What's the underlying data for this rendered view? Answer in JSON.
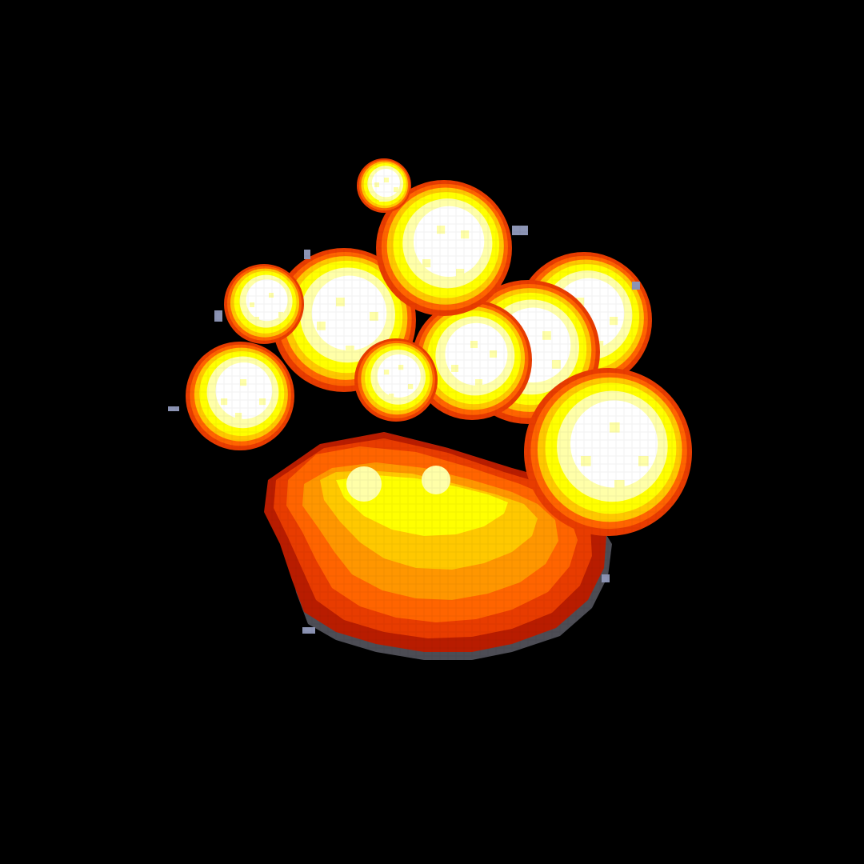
{
  "scene": {
    "background_color": "#000000",
    "sprite": "explosion-fireball",
    "palette": {
      "core_white": "#ffffff",
      "pale_yellow": "#ffffa8",
      "yellow": "#ffff00",
      "amber": "#ffc800",
      "orange": "#ff9600",
      "dark_orange": "#ff6400",
      "red_orange": "#e83c00",
      "deep_red": "#b81c00",
      "smoke_gray": "#5a5a64",
      "debris_blue": "#8c94b4"
    }
  }
}
